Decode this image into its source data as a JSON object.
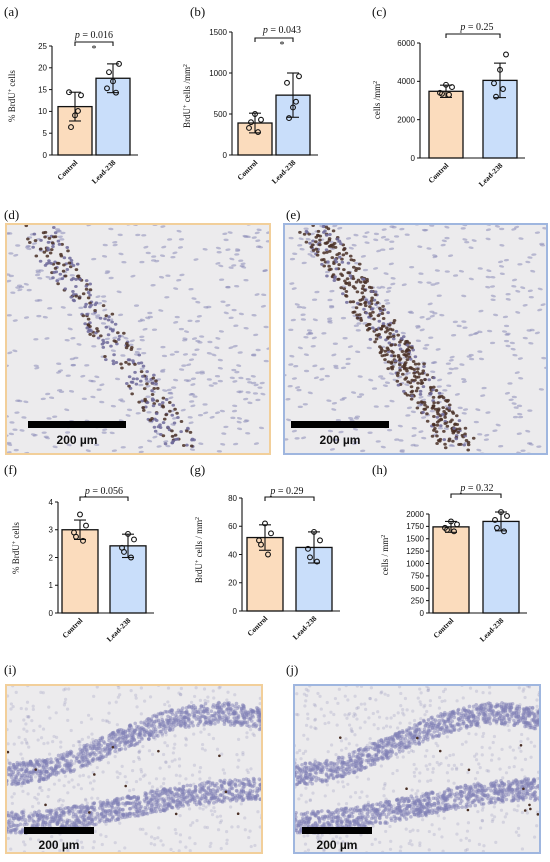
{
  "colors": {
    "control_fill": "#fbdcbd",
    "lead_fill": "#c9defa",
    "control_frame": "#f2cf9a",
    "lead_frame": "#9fb6df",
    "tissue_bg": "#ecebed",
    "nucleus": "#8c8cb8",
    "brdu": "#4a3026"
  },
  "charts": [
    {
      "label": "(a)",
      "chart_data": {
        "type": "bar",
        "categories": [
          "Control",
          "Lead-238"
        ],
        "values": [
          11.1,
          17.6
        ],
        "sd": [
          3.3,
          3.3
        ],
        "points": [
          [
            9.1,
            13.7,
            14.4,
            10.1,
            6.4
          ],
          [
            16.9,
            20.9,
            15.3,
            14.3,
            19.0
          ]
        ],
        "ylabel": "% BrdU+ cells",
        "ylim": [
          0,
          25
        ],
        "yticks": [
          "0",
          "5",
          "10",
          "15",
          "20",
          "25"
        ],
        "p_label": "p = 0.016",
        "star": "*"
      }
    },
    {
      "label": "(b)",
      "chart_data": {
        "type": "bar",
        "categories": [
          "Control",
          "Lead-238"
        ],
        "values": [
          390,
          730
        ],
        "sd": [
          120,
          270
        ],
        "points": [
          [
            500,
            430,
            330,
            280,
            400
          ],
          [
            580,
            960,
            880,
            650,
            450
          ]
        ],
        "ylabel": "BrdU+ cells /mm2",
        "ylim": [
          0,
          1500
        ],
        "yticks": [
          "0",
          "500",
          "1000",
          "1500"
        ],
        "p_label": "p = 0.043",
        "star": "*"
      }
    },
    {
      "label": "(c)",
      "chart_data": {
        "type": "bar",
        "categories": [
          "Control",
          "Lead-238"
        ],
        "values": [
          3480,
          4050
        ],
        "sd": [
          320,
          900
        ],
        "points": [
          [
            3820,
            3700,
            3400,
            3300,
            3350
          ],
          [
            4600,
            5400,
            3900,
            3600,
            3200
          ]
        ],
        "ylabel": "cells /mm2",
        "ylim": [
          0,
          6000
        ],
        "yticks": [
          "0",
          "2000",
          "4000",
          "6000"
        ],
        "p_label": "p = 0.25",
        "star": ""
      }
    },
    {
      "label": "(f)",
      "chart_data": {
        "type": "bar",
        "categories": [
          "Control",
          "Lead-238"
        ],
        "values": [
          3.0,
          2.42
        ],
        "sd": [
          0.35,
          0.42
        ],
        "points": [
          [
            3.55,
            3.15,
            2.9,
            2.6,
            2.75
          ],
          [
            2.85,
            2.65,
            2.35,
            2.0,
            2.2
          ]
        ],
        "ylabel": "% BrdU+ cells",
        "ylim": [
          0,
          4
        ],
        "yticks": [
          "0",
          "1",
          "2",
          "3",
          "4"
        ],
        "p_label": "p = 0.056",
        "star": ""
      }
    },
    {
      "label": "(g)",
      "chart_data": {
        "type": "bar",
        "categories": [
          "Control",
          "Lead-238"
        ],
        "values": [
          52,
          45
        ],
        "sd": [
          9,
          11
        ],
        "points": [
          [
            62,
            55,
            50,
            40,
            47
          ],
          [
            56,
            50,
            44,
            35,
            38
          ]
        ],
        "ylabel": "BrdU+ cells / mm2",
        "ylim": [
          0,
          80
        ],
        "yticks": [
          "0",
          "20",
          "40",
          "60",
          "80"
        ],
        "p_label": "p = 0.29",
        "star": ""
      }
    },
    {
      "label": "(h)",
      "chart_data": {
        "type": "bar",
        "categories": [
          "Control",
          "Lead-238"
        ],
        "values": [
          1740,
          1850
        ],
        "sd": [
          110,
          190
        ],
        "points": [
          [
            1850,
            1790,
            1720,
            1650,
            1680
          ],
          [
            2040,
            1960,
            1880,
            1650,
            1720
          ]
        ],
        "ylabel": "cells / mm2",
        "ylim": [
          0,
          2000
        ],
        "yticks": [
          "0",
          "250",
          "500",
          "750",
          "1000",
          "1250",
          "1500",
          "1750",
          "2000"
        ],
        "p_label": "p = 0.32",
        "star": ""
      }
    }
  ],
  "micrographs": [
    {
      "label": "(d)",
      "group": "control",
      "region": "stream",
      "scale_label": "200 µm"
    },
    {
      "label": "(e)",
      "group": "lead",
      "region": "stream",
      "scale_label": "200 µm"
    },
    {
      "label": "(i)",
      "group": "control",
      "region": "dentate",
      "scale_label": "200 µm"
    },
    {
      "label": "(j)",
      "group": "lead",
      "region": "dentate",
      "scale_label": "200 µm"
    }
  ]
}
